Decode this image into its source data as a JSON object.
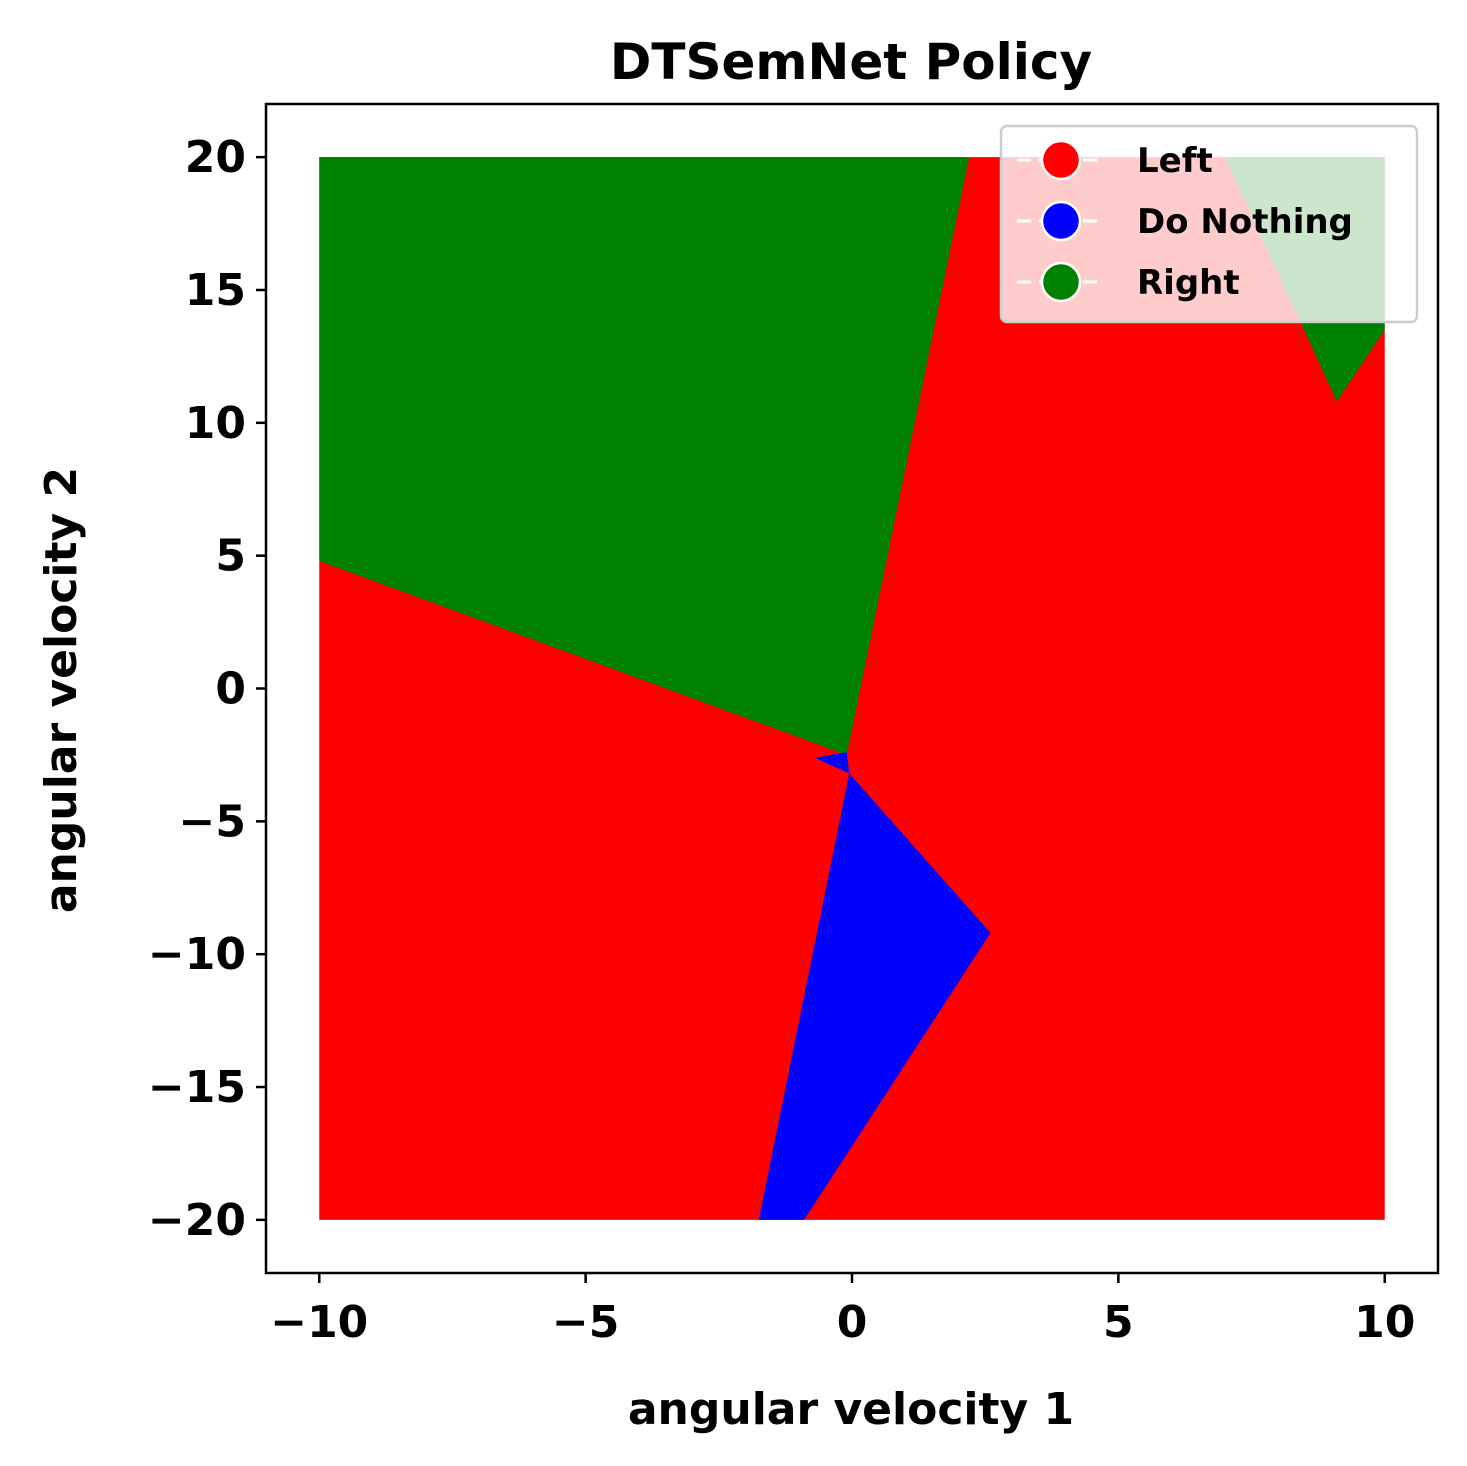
{
  "chart_data": {
    "type": "heatmap",
    "title": "DTSemNet Policy",
    "xlabel": "angular velocity 1",
    "ylabel": "angular velocity 2",
    "xlim": [
      -11,
      11
    ],
    "ylim": [
      -22,
      22
    ],
    "xticks": [
      -10,
      -5,
      0,
      5,
      10
    ],
    "yticks": [
      -20,
      -15,
      -10,
      -5,
      0,
      5,
      10,
      15,
      20
    ],
    "xtick_labels": [
      "−10",
      "−5",
      "0",
      "5",
      "10"
    ],
    "ytick_labels": [
      "−20",
      "−15",
      "−10",
      "−5",
      "0",
      "5",
      "10",
      "15",
      "20"
    ],
    "grid": false,
    "legend": {
      "location": "upper right",
      "entries": [
        {
          "label": "Left",
          "color": "#ff0000"
        },
        {
          "label": "Do Nothing",
          "color": "#0000ff"
        },
        {
          "label": "Right",
          "color": "#008000"
        }
      ]
    },
    "domain": {
      "x": [
        -10,
        10
      ],
      "y": [
        -20,
        20
      ]
    },
    "background_action": "Left",
    "regions": [
      {
        "action": "Right",
        "color": "#008000",
        "polygon": [
          [
            -10,
            20
          ],
          [
            2.2,
            20
          ],
          [
            -0.1,
            -2.5
          ],
          [
            -10,
            4.8
          ]
        ]
      },
      {
        "action": "Right",
        "color": "#008000",
        "polygon": [
          [
            7.0,
            20
          ],
          [
            10,
            20
          ],
          [
            10,
            13.5
          ],
          [
            9.1,
            10.8
          ]
        ]
      },
      {
        "action": "Do Nothing",
        "color": "#0000ff",
        "polygon": [
          [
            -0.7,
            -2.6
          ],
          [
            -0.1,
            -2.4
          ],
          [
            -0.05,
            -3.2
          ]
        ]
      },
      {
        "action": "Do Nothing",
        "color": "#0000ff",
        "polygon": [
          [
            -0.05,
            -3.2
          ],
          [
            2.6,
            -9.2
          ],
          [
            -0.9,
            -20
          ],
          [
            -1.75,
            -20
          ]
        ]
      }
    ]
  }
}
